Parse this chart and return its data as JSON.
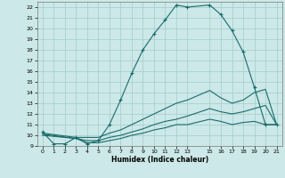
{
  "xlabel": "Humidex (Indice chaleur)",
  "bg_color": "#cce8e8",
  "grid_color": "#aacfcf",
  "line_color": "#1a6b6b",
  "xlim": [
    -0.5,
    21.5
  ],
  "ylim": [
    9,
    22.5
  ],
  "xticks": [
    0,
    1,
    2,
    3,
    4,
    5,
    6,
    7,
    8,
    9,
    10,
    11,
    12,
    13,
    15,
    16,
    17,
    18,
    19,
    20,
    21
  ],
  "yticks": [
    9,
    10,
    11,
    12,
    13,
    14,
    15,
    16,
    17,
    18,
    19,
    20,
    21,
    22
  ],
  "lines": [
    {
      "x": [
        0,
        1,
        2,
        3,
        4,
        5,
        6,
        7,
        8,
        9,
        10,
        11,
        12,
        13,
        15,
        16,
        17,
        18,
        19,
        20,
        21
      ],
      "y": [
        10.3,
        9.2,
        9.2,
        9.8,
        9.2,
        9.5,
        11.0,
        13.3,
        15.8,
        18.0,
        19.5,
        20.8,
        22.2,
        22.0,
        22.2,
        21.3,
        19.8,
        17.8,
        14.5,
        11.0,
        11.0
      ],
      "marker": "+"
    },
    {
      "x": [
        0,
        3,
        4,
        5,
        6,
        7,
        8,
        9,
        10,
        11,
        12,
        13,
        15,
        16,
        17,
        18,
        19,
        20,
        21
      ],
      "y": [
        10.2,
        9.8,
        9.8,
        9.8,
        10.2,
        10.5,
        11.0,
        11.5,
        12.0,
        12.5,
        13.0,
        13.3,
        14.2,
        13.5,
        13.0,
        13.3,
        14.0,
        14.3,
        11.0
      ],
      "marker": null
    },
    {
      "x": [
        0,
        3,
        4,
        5,
        6,
        7,
        8,
        9,
        10,
        11,
        12,
        13,
        15,
        16,
        17,
        18,
        19,
        20,
        21
      ],
      "y": [
        10.1,
        9.7,
        9.5,
        9.5,
        9.8,
        10.0,
        10.3,
        10.6,
        11.0,
        11.3,
        11.5,
        11.8,
        12.5,
        12.2,
        12.0,
        12.2,
        12.5,
        12.8,
        11.0
      ],
      "marker": null
    },
    {
      "x": [
        0,
        3,
        4,
        5,
        6,
        7,
        8,
        9,
        10,
        11,
        12,
        13,
        15,
        16,
        17,
        18,
        19,
        20,
        21
      ],
      "y": [
        10.0,
        9.7,
        9.3,
        9.3,
        9.5,
        9.7,
        10.0,
        10.2,
        10.5,
        10.7,
        11.0,
        11.0,
        11.5,
        11.3,
        11.0,
        11.2,
        11.3,
        11.0,
        11.0
      ],
      "marker": null
    }
  ]
}
